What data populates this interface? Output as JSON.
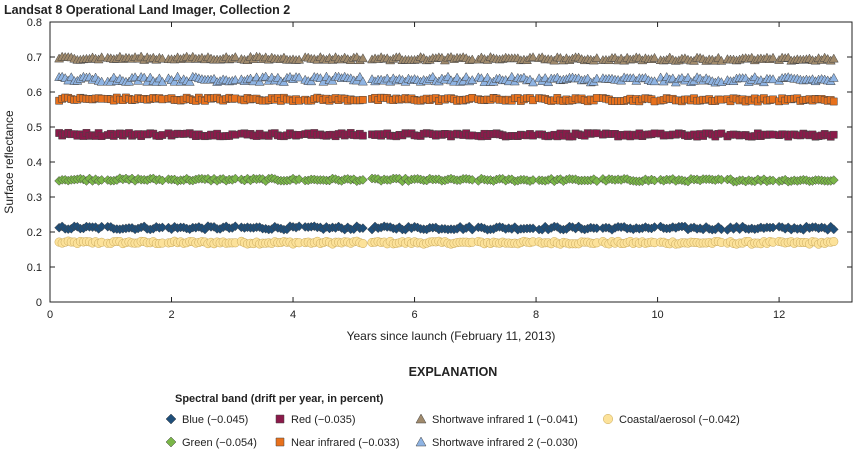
{
  "chart_data": {
    "type": "scatter",
    "title": "Landsat 8 Operational Land Imager, Collection 2",
    "xlabel": "Years since launch (February 11, 2013)",
    "ylabel": "Surface reflectance",
    "xlim": [
      0,
      13.2
    ],
    "ylim": [
      0,
      0.8
    ],
    "x_ticks": [
      0,
      2,
      4,
      6,
      8,
      10,
      12
    ],
    "y_ticks": [
      0,
      0.1,
      0.2,
      0.3,
      0.4,
      0.5,
      0.6,
      0.7,
      0.8
    ],
    "x_tick_labels": [
      "0",
      "2",
      "4",
      "6",
      "8",
      "10",
      "12"
    ],
    "y_tick_labels": [
      "0",
      "0.1",
      "0.2",
      "0.3",
      "0.4",
      "0.5",
      "0.6",
      "0.7",
      "0.8"
    ],
    "grid": false,
    "observation_periods": [
      [
        0.15,
        0.85
      ],
      [
        0.95,
        1.85
      ],
      [
        1.95,
        3.05
      ],
      [
        3.15,
        4.1
      ],
      [
        4.2,
        5.15
      ],
      [
        5.3,
        6.05
      ],
      [
        6.1,
        6.95
      ],
      [
        7.05,
        7.95
      ],
      [
        8.05,
        9.0
      ],
      [
        9.1,
        9.95
      ],
      [
        10.05,
        11.05
      ],
      [
        11.15,
        11.9
      ],
      [
        12.0,
        12.9
      ]
    ],
    "legend": {
      "heading": "EXPLANATION",
      "subheading": "Spectral band (drift per year, in percent)"
    },
    "series": [
      {
        "name": "Blue",
        "legend_label": "Blue (−0.045)",
        "marker": "diamond",
        "color": "#1f4e79",
        "mean": 0.212,
        "jitter": 0.005,
        "drift_percent_per_year": -0.045
      },
      {
        "name": "Green",
        "legend_label": "Green (−0.054)",
        "marker": "diamond",
        "color": "#7ab648",
        "mean": 0.35,
        "jitter": 0.004,
        "drift_percent_per_year": -0.054
      },
      {
        "name": "Red",
        "legend_label": "Red (−0.035)",
        "marker": "square",
        "color": "#8b1a4a",
        "mean": 0.479,
        "jitter": 0.005,
        "drift_percent_per_year": -0.035
      },
      {
        "name": "Near infrared",
        "legend_label": "Near infrared (−0.033)",
        "marker": "square",
        "color": "#e8711c",
        "mean": 0.58,
        "jitter": 0.005,
        "drift_percent_per_year": -0.033
      },
      {
        "name": "Shortwave infrared 1",
        "legend_label": "Shortwave infrared 1 (−0.041)",
        "marker": "triangle",
        "color": "#a08a6c",
        "mean": 0.697,
        "jitter": 0.005,
        "drift_percent_per_year": -0.041
      },
      {
        "name": "Shortwave infrared 2",
        "legend_label": "Shortwave infrared 2 (−0.030)",
        "marker": "triangle",
        "color": "#8fb4e3",
        "mean": 0.637,
        "jitter": 0.008,
        "drift_percent_per_year": -0.03
      },
      {
        "name": "Coastal/aerosol",
        "legend_label": "Coastal/aerosol (−0.042)",
        "marker": "circle",
        "color": "#fce29a",
        "mean": 0.17,
        "jitter": 0.004,
        "drift_percent_per_year": -0.042
      }
    ]
  }
}
